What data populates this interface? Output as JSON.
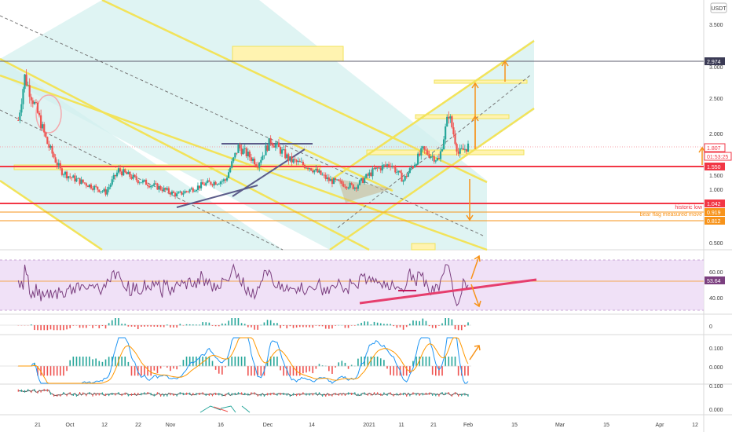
{
  "currency": "USDT",
  "colors": {
    "up": "#26a69a",
    "down": "#ef5350",
    "channel": "#f2e35a",
    "channel_fill": "#d2f0ee",
    "hline_red": "#f23645",
    "rsi": "#7b3f7f",
    "rsi_band": "#ecd9f5",
    "orange": "#f7931a",
    "dark_line": "#5c5c8a",
    "pink": "#e63e6d"
  },
  "time_axis": [
    "21",
    "Oct",
    "12",
    "22",
    "Nov",
    "16",
    "Dec",
    "14",
    "2021",
    "11",
    "21",
    "Feb",
    "15",
    "Mar",
    "15",
    "Apr",
    "12"
  ],
  "price_axis": [
    "3.500",
    "3.000",
    "2.500",
    "2.000",
    "1.500",
    "1.000",
    "0.500"
  ],
  "price_tags": [
    {
      "label": "2.974",
      "style": "dark"
    },
    {
      "label": "1.807",
      "style": "red-outline"
    },
    {
      "label": "01:53:25",
      "style": "red-outline"
    },
    {
      "label": "1.550",
      "style": "red"
    },
    {
      "label": "1.042",
      "style": "red"
    },
    {
      "label": "0.919",
      "style": "orange"
    },
    {
      "label": "0.812",
      "style": "orange"
    }
  ],
  "annotations": [
    "historic low",
    "bear flag measured move"
  ],
  "rsi": {
    "ticks": [
      "60.00",
      "40.00"
    ],
    "value_tag": "53.64"
  },
  "macd_panel": {
    "ticks": [
      "0"
    ]
  },
  "stoch_panel": {
    "ticks": [
      "0.100",
      "0.000"
    ]
  },
  "bottom_panel": {
    "ticks": [
      "0.100",
      "0.000"
    ]
  },
  "chart_data": {
    "type": "candlestick",
    "quote": "USDT",
    "price_levels": [
      {
        "label": "2.974",
        "value": 2.974
      },
      {
        "label": "1.807",
        "value": 1.807
      },
      {
        "label": "1.550",
        "value": 1.55
      },
      {
        "label": "1.042",
        "value": 1.042,
        "note": "historic low"
      },
      {
        "label": "0.919",
        "value": 0.919,
        "note": "bear flag measured move"
      },
      {
        "label": "0.812",
        "value": 0.812
      }
    ],
    "y_ticks": [
      3.5,
      3.0,
      2.5,
      2.0,
      1.5,
      1.0,
      0.5
    ],
    "price_path": [
      {
        "date": "Sep 15",
        "price": 2.2
      },
      {
        "date": "Sep 17",
        "price": 2.85
      },
      {
        "date": "Sep 21",
        "price": 2.3
      },
      {
        "date": "Sep 24",
        "price": 1.85
      },
      {
        "date": "Sep 28",
        "price": 1.45
      },
      {
        "date": "Oct 1",
        "price": 1.35
      },
      {
        "date": "Oct 12",
        "price": 1.12
      },
      {
        "date": "Oct 16",
        "price": 1.45
      },
      {
        "date": "Oct 22",
        "price": 1.3
      },
      {
        "date": "Oct 28",
        "price": 1.2
      },
      {
        "date": "Nov 3",
        "price": 1.08
      },
      {
        "date": "Nov 12",
        "price": 1.25
      },
      {
        "date": "Nov 18",
        "price": 1.3
      },
      {
        "date": "Nov 22",
        "price": 1.8
      },
      {
        "date": "Nov 28",
        "price": 1.55
      },
      {
        "date": "Dec 2",
        "price": 1.9
      },
      {
        "date": "Dec 8",
        "price": 1.6
      },
      {
        "date": "Dec 14",
        "price": 1.5
      },
      {
        "date": "Dec 20",
        "price": 1.3
      },
      {
        "date": "Dec 28",
        "price": 1.2
      },
      {
        "date": "Jan 3",
        "price": 1.45
      },
      {
        "date": "Jan 8",
        "price": 1.55
      },
      {
        "date": "Jan 12",
        "price": 1.3
      },
      {
        "date": "Jan 18",
        "price": 1.75
      },
      {
        "date": "Jan 23",
        "price": 1.6
      },
      {
        "date": "Jan 26",
        "price": 2.3
      },
      {
        "date": "Jan 29",
        "price": 1.7
      },
      {
        "date": "Feb 1",
        "price": 1.81
      }
    ],
    "rsi": {
      "range": [
        30,
        70
      ],
      "last": 53.64
    }
  }
}
